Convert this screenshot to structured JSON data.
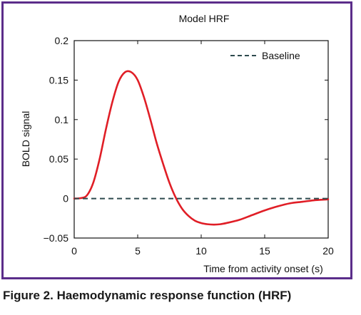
{
  "caption": "Figure 2. Haemodynamic response function (HRF)",
  "colors": {
    "frame": "#5b2d8a",
    "hrf_line": "#e01e26",
    "baseline": "#2e4a4e"
  },
  "chart_data": {
    "type": "line",
    "title": "Model HRF",
    "xlabel": "Time from activity onset (s)",
    "ylabel": "BOLD signal",
    "xlim": [
      0,
      20
    ],
    "ylim": [
      -0.05,
      0.2
    ],
    "xticks": [
      0,
      5,
      10,
      15,
      20
    ],
    "xtick_labels": [
      "0",
      "5",
      "10",
      "15",
      "20"
    ],
    "yticks": [
      -0.05,
      0,
      0.05,
      0.1,
      0.15,
      0.2
    ],
    "ytick_labels": [
      "−0.05",
      "0",
      "0.05",
      "0.1",
      "0.15",
      "0.2"
    ],
    "grid": false,
    "legend": {
      "position": "top-right",
      "entries": [
        "Baseline"
      ]
    },
    "series": [
      {
        "style": "solid",
        "x": [
          0,
          0.5,
          1,
          1.5,
          2,
          2.5,
          3,
          3.5,
          4,
          4.5,
          5,
          5.5,
          6,
          6.5,
          7,
          7.5,
          8,
          8.5,
          9,
          9.5,
          10,
          10.5,
          11,
          11.5,
          12,
          13,
          14,
          15,
          16,
          17,
          18,
          19,
          20
        ],
        "y": [
          0,
          0.0005,
          0.004,
          0.02,
          0.05,
          0.088,
          0.122,
          0.148,
          0.16,
          0.16,
          0.15,
          0.128,
          0.1,
          0.07,
          0.044,
          0.02,
          0.001,
          -0.013,
          -0.022,
          -0.028,
          -0.031,
          -0.0325,
          -0.033,
          -0.0325,
          -0.031,
          -0.027,
          -0.021,
          -0.015,
          -0.01,
          -0.006,
          -0.004,
          -0.002,
          -0.001
        ]
      },
      {
        "name": "Baseline",
        "style": "dashed",
        "x": [
          0,
          20
        ],
        "y": [
          0,
          0
        ]
      }
    ]
  }
}
